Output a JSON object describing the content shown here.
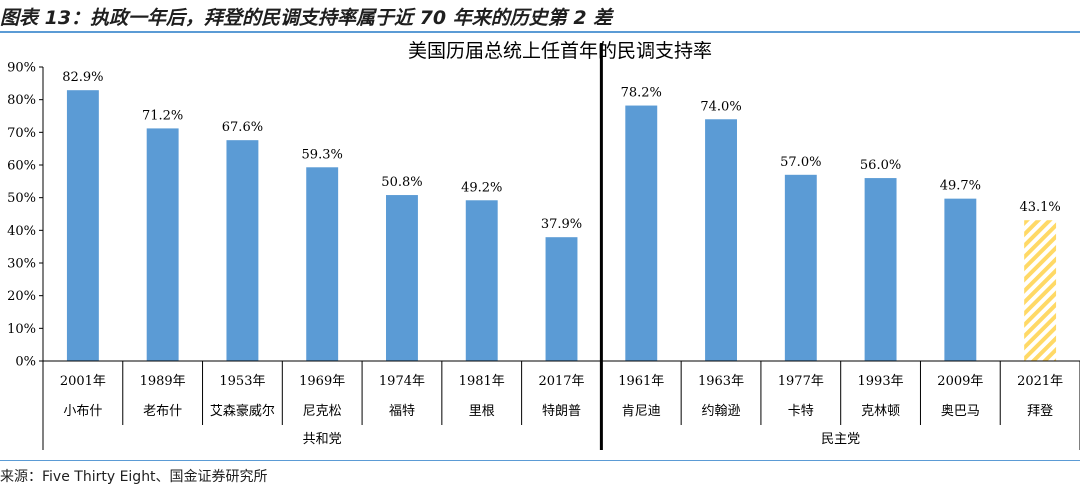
{
  "figure": {
    "label": "图表 13：执政一年后，拜登的民调支持率属于近 70 年来的历史第 2 差",
    "source": "来源：Five Thirty Eight、国金证券研究所"
  },
  "colors": {
    "bar_fill": "#5b9bd5",
    "highlight_fill": "#ffd966",
    "highlight_pattern": "hatched",
    "rule": "#5b9bd5",
    "divider": "#000000"
  },
  "chart_data": {
    "type": "bar",
    "title": "美国历届总统上任首年的民调支持率",
    "ylim": [
      0,
      90
    ],
    "yticks": [
      "0%",
      "10%",
      "20%",
      "30%",
      "40%",
      "50%",
      "60%",
      "70%",
      "80%",
      "90%"
    ],
    "grid": false,
    "legend": "none",
    "groups": [
      {
        "name": "共和党",
        "bars": [
          {
            "year": "2001年",
            "president": "小布什",
            "value": 82.9,
            "label": "82.9%"
          },
          {
            "year": "1989年",
            "president": "老布什",
            "value": 71.2,
            "label": "71.2%"
          },
          {
            "year": "1953年",
            "president": "艾森豪威尔",
            "value": 67.6,
            "label": "67.6%"
          },
          {
            "year": "1969年",
            "president": "尼克松",
            "value": 59.3,
            "label": "59.3%"
          },
          {
            "year": "1974年",
            "president": "福特",
            "value": 50.8,
            "label": "50.8%"
          },
          {
            "year": "1981年",
            "president": "里根",
            "value": 49.2,
            "label": "49.2%"
          },
          {
            "year": "2017年",
            "president": "特朗普",
            "value": 37.9,
            "label": "37.9%"
          }
        ]
      },
      {
        "name": "民主党",
        "bars": [
          {
            "year": "1961年",
            "president": "肯尼迪",
            "value": 78.2,
            "label": "78.2%"
          },
          {
            "year": "1963年",
            "president": "约翰逊",
            "value": 74.0,
            "label": "74.0%"
          },
          {
            "year": "1977年",
            "president": "卡特",
            "value": 57.0,
            "label": "57.0%"
          },
          {
            "year": "1993年",
            "president": "克林顿",
            "value": 56.0,
            "label": "56.0%"
          },
          {
            "year": "2009年",
            "president": "奥巴马",
            "value": 49.7,
            "label": "49.7%"
          },
          {
            "year": "2021年",
            "president": "拜登",
            "value": 43.1,
            "label": "43.1%",
            "highlight": true
          }
        ]
      }
    ]
  }
}
